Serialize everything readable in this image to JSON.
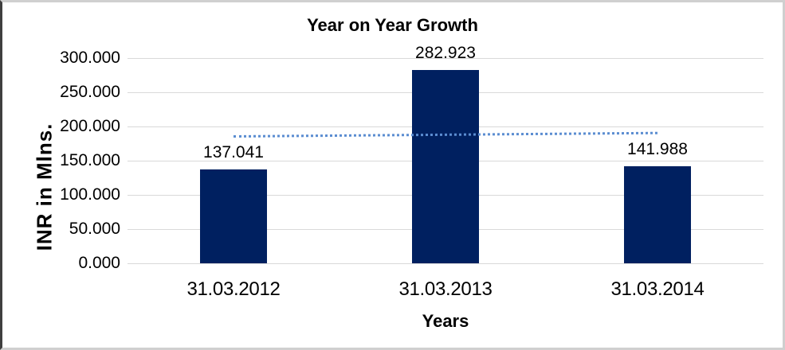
{
  "chart_data": {
    "type": "bar",
    "title": "Year on Year Growth",
    "xlabel": "Years",
    "ylabel": "INR in Mlns.",
    "categories": [
      "31.03.2012",
      "31.03.2013",
      "31.03.2014"
    ],
    "values": [
      137.041,
      282.923,
      141.988
    ],
    "value_labels": [
      "137.041",
      "282.923",
      "141.988"
    ],
    "ylim": [
      0,
      300
    ],
    "yticks": [
      {
        "value": 300,
        "label": "300.000"
      },
      {
        "value": 250,
        "label": "250.000"
      },
      {
        "value": 200,
        "label": "200.000"
      },
      {
        "value": 150,
        "label": "150.000"
      },
      {
        "value": 100,
        "label": "100.000"
      },
      {
        "value": 50,
        "label": "50.000"
      },
      {
        "value": 0,
        "label": "0.000"
      }
    ],
    "grid": true,
    "legend": "none",
    "bar_color": "#002060",
    "gridline_color": "#d9d9d9",
    "trendline": {
      "style": "dotted",
      "color": "#5b8dd1",
      "start_value": 185,
      "end_value": 190
    }
  }
}
